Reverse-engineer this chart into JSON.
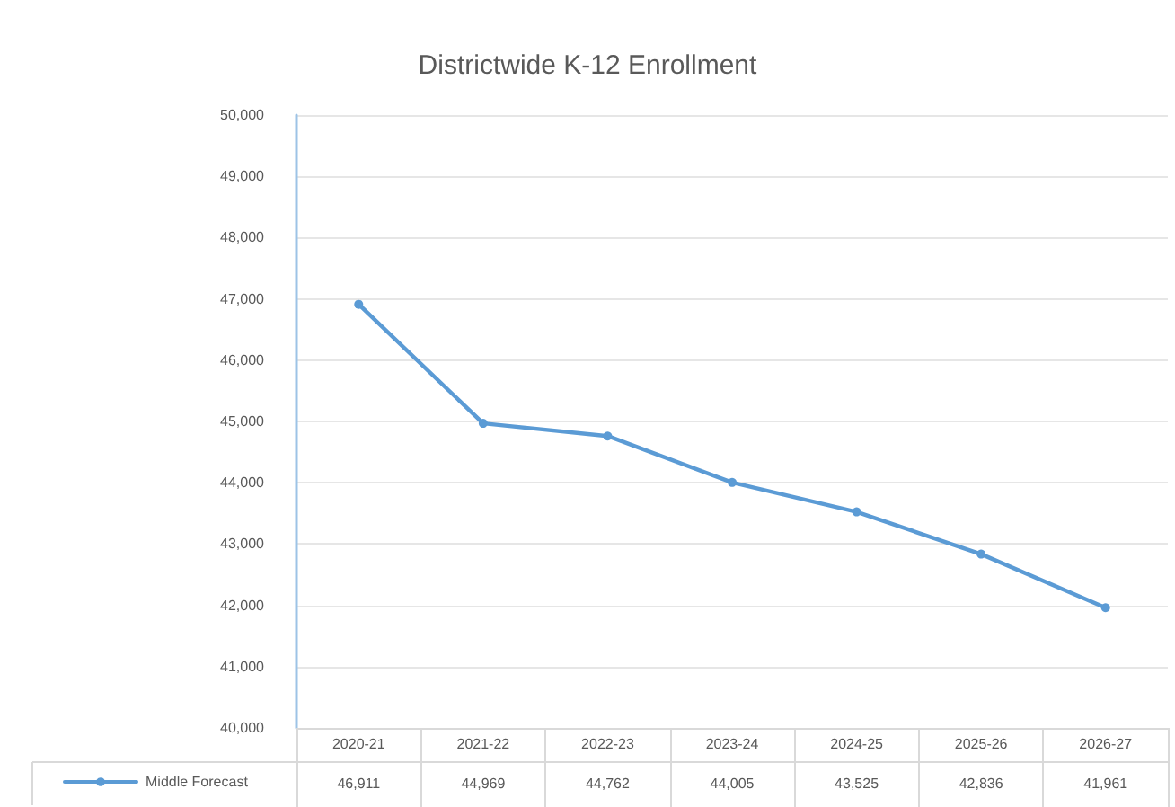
{
  "chart_data": {
    "type": "line",
    "title": "Districtwide K-12 Enrollment",
    "categories": [
      "2020-21",
      "2021-22",
      "2022-23",
      "2023-24",
      "2024-25",
      "2025-26",
      "2026-27"
    ],
    "series": [
      {
        "name": "Middle Forecast",
        "color": "#5b9bd5",
        "values": [
          46911,
          44969,
          44762,
          44005,
          43525,
          42836,
          41961
        ],
        "value_labels": [
          "46,911",
          "44,969",
          "44,762",
          "44,005",
          "43,525",
          "42,836",
          "41,961"
        ]
      }
    ],
    "ylim": [
      40000,
      50000
    ],
    "yticks": [
      {
        "value": 40000,
        "label": "40,000"
      },
      {
        "value": 41000,
        "label": "41,000"
      },
      {
        "value": 42000,
        "label": "42,000"
      },
      {
        "value": 43000,
        "label": "43,000"
      },
      {
        "value": 44000,
        "label": "44,000"
      },
      {
        "value": 45000,
        "label": "45,000"
      },
      {
        "value": 46000,
        "label": "46,000"
      },
      {
        "value": 47000,
        "label": "47,000"
      },
      {
        "value": 48000,
        "label": "48,000"
      },
      {
        "value": 49000,
        "label": "49,000"
      },
      {
        "value": 50000,
        "label": "50,000"
      }
    ],
    "grid": "y",
    "legend": "bottom left",
    "marker": "circle",
    "line_style": "solid"
  }
}
